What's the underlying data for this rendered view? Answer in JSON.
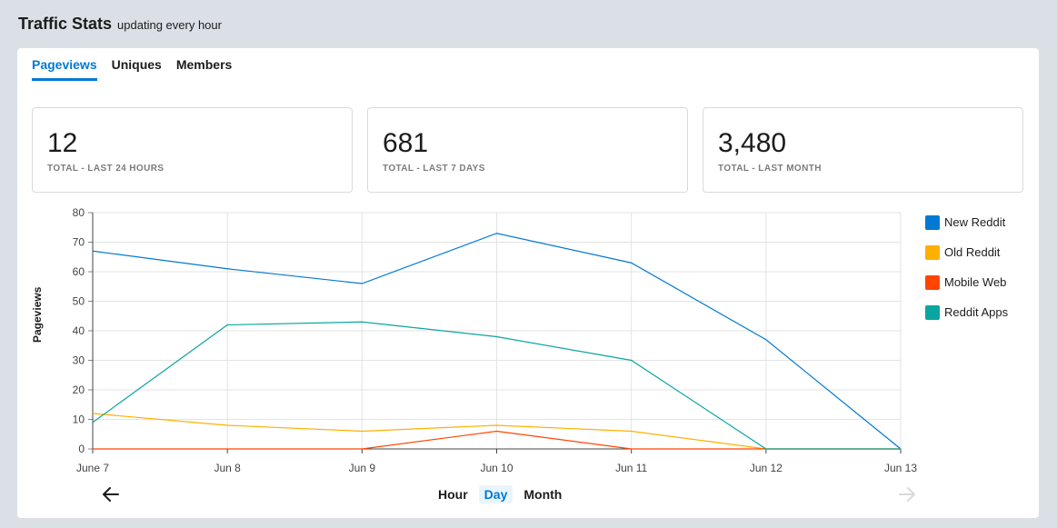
{
  "header": {
    "title": "Traffic Stats",
    "subtitle": "updating every hour"
  },
  "tabs": [
    {
      "label": "Pageviews",
      "active": true
    },
    {
      "label": "Uniques",
      "active": false
    },
    {
      "label": "Members",
      "active": false
    }
  ],
  "stats": [
    {
      "value": "12",
      "label": "TOTAL - LAST 24 HOURS"
    },
    {
      "value": "681",
      "label": "TOTAL - LAST 7 DAYS"
    },
    {
      "value": "3,480",
      "label": "TOTAL - LAST MONTH"
    }
  ],
  "ranges": [
    {
      "label": "Hour",
      "active": false
    },
    {
      "label": "Day",
      "active": true
    },
    {
      "label": "Month",
      "active": false
    }
  ],
  "icons": {
    "prev": "arrow-left-icon",
    "next": "arrow-right-icon"
  },
  "chart_data": {
    "type": "line",
    "categories": [
      "June 7",
      "Jun 8",
      "Jun 9",
      "Jun 10",
      "Jun 11",
      "Jun 12",
      "Jun 13"
    ],
    "ylabel": "Pageviews",
    "xlabel": "",
    "ylim": [
      0,
      80
    ],
    "yticks": [
      0,
      10,
      20,
      30,
      40,
      50,
      60,
      70,
      80
    ],
    "grid": true,
    "legend_position": "right",
    "series": [
      {
        "name": "New Reddit",
        "color": "#0079d3",
        "values": [
          67,
          61,
          56,
          73,
          63,
          37,
          0
        ]
      },
      {
        "name": "Old Reddit",
        "color": "#ffb000",
        "values": [
          12,
          8,
          6,
          8,
          6,
          0,
          0
        ]
      },
      {
        "name": "Mobile Web",
        "color": "#ff4500",
        "values": [
          0,
          0,
          0,
          6,
          0,
          0,
          0
        ]
      },
      {
        "name": "Reddit Apps",
        "color": "#0aa5a0",
        "values": [
          9,
          42,
          43,
          38,
          30,
          0,
          0
        ]
      }
    ]
  }
}
